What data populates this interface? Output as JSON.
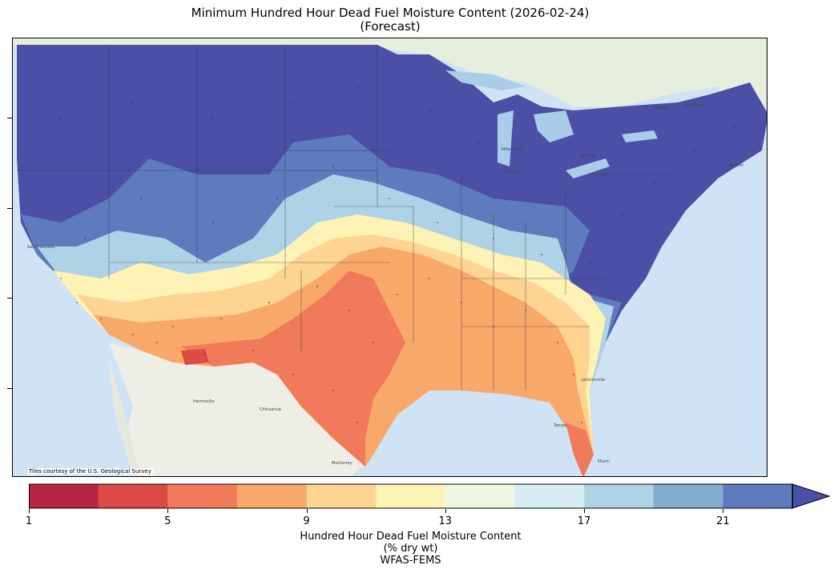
{
  "title_line1": "Minimum Hundred Hour Dead Fuel Moisture Content (2026-02-24)",
  "title_line2": "(Forecast)",
  "attribution": "Tiles courtesy of the U.S. Geological Survey",
  "colorbar": {
    "ticks": [
      "1",
      "5",
      "9",
      "13",
      "17",
      "21"
    ],
    "colors": [
      "#b7243f",
      "#dc4a45",
      "#f07a5a",
      "#f8a96a",
      "#fdd491",
      "#fef2b4",
      "#eef7e2",
      "#d6ecf3",
      "#aed3e6",
      "#82adcf",
      "#5e7bbd",
      "#4b4fa6"
    ],
    "label_line1": "Hundred Hour Dead Fuel Moisture Content",
    "label_line2": "(% dry wt)",
    "label_line3": "WFAS-FEMS"
  },
  "map_colors": {
    "ocean": "#cfe3f5",
    "land": "#eef0ea",
    "lakes": "#a9cde8"
  },
  "place_labels": [
    "Hermosillo",
    "Chihuahua",
    "Monterrey",
    "Jacksonville",
    "Tampa",
    "Miami",
    "Ottawa",
    "Montreal",
    "Boston",
    "Milwaukee",
    "Toronto",
    "Chicago",
    "San Francisco"
  ]
}
